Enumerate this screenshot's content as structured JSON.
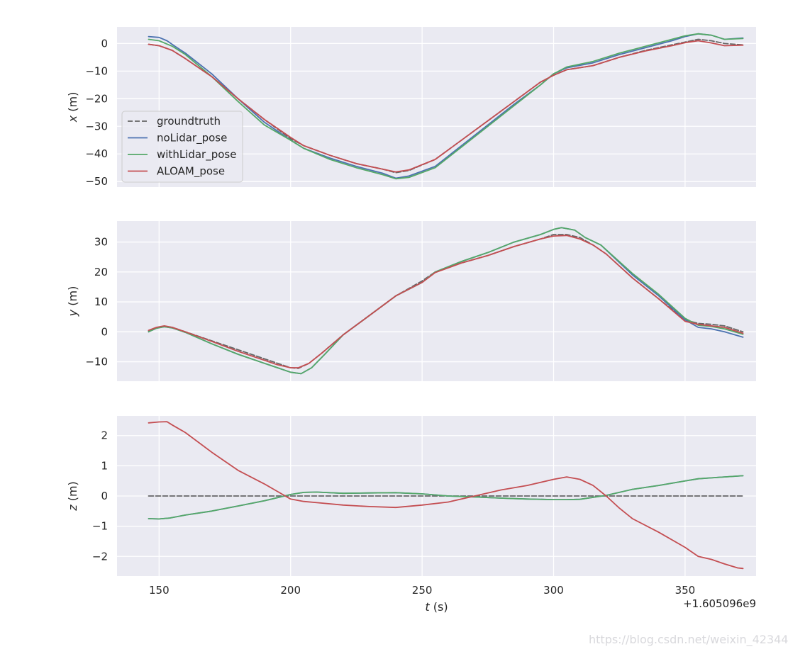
{
  "chart_data": [
    {
      "type": "line",
      "ylabel_var": "x",
      "ylabel_unit": " (m)",
      "xlim": [
        134,
        377
      ],
      "ylim": [
        -52,
        6
      ],
      "yticks": [
        0,
        -10,
        -20,
        -30,
        -40,
        -50
      ],
      "xticks": [
        150,
        200,
        250,
        300,
        350
      ],
      "show_xticklabels": false,
      "grid": true,
      "legend": {
        "placement": "center-left",
        "entries": [
          "groundtruth",
          "noLidar_pose",
          "withLidar_pose",
          "ALOAM_pose"
        ]
      },
      "series": [
        {
          "name": "groundtruth",
          "color": "#666666",
          "style": "dashed",
          "x": [
            146,
            150,
            155,
            160,
            170,
            180,
            190,
            200,
            205,
            215,
            225,
            235,
            240,
            245,
            255,
            265,
            275,
            285,
            295,
            300,
            305,
            315,
            325,
            335,
            345,
            350,
            355,
            360,
            365,
            372
          ],
          "y": [
            -0.3,
            -0.8,
            -2.5,
            -5.5,
            -12,
            -20,
            -27.5,
            -34.5,
            -37,
            -40.5,
            -43.5,
            -45.5,
            -46.8,
            -46,
            -42,
            -35,
            -28,
            -21,
            -14,
            -11.5,
            -9.5,
            -8,
            -5,
            -2.5,
            -0.5,
            0.5,
            1.5,
            1,
            0,
            -0.5
          ]
        },
        {
          "name": "noLidar_pose",
          "color": "#4c72b0",
          "style": "solid",
          "x": [
            146,
            150,
            153,
            156,
            160,
            170,
            180,
            190,
            200,
            205,
            215,
            225,
            235,
            240,
            245,
            255,
            265,
            275,
            285,
            295,
            300,
            305,
            315,
            325,
            335,
            345,
            350,
            355,
            360,
            365,
            372
          ],
          "y": [
            2.5,
            2.2,
            1,
            -1,
            -3.5,
            -11,
            -20,
            -28.5,
            -35,
            -38,
            -41.5,
            -44.5,
            -47,
            -48.8,
            -48,
            -44.5,
            -37,
            -29.5,
            -22,
            -15,
            -11,
            -8.8,
            -7,
            -4,
            -1.5,
            1,
            2.5,
            3.5,
            3,
            1.5,
            2
          ]
        },
        {
          "name": "withLidar_pose",
          "color": "#55a868",
          "style": "solid",
          "x": [
            146,
            150,
            155,
            160,
            170,
            180,
            190,
            200,
            205,
            215,
            225,
            235,
            240,
            245,
            255,
            265,
            275,
            285,
            295,
            300,
            305,
            315,
            325,
            335,
            345,
            350,
            355,
            360,
            365,
            372
          ],
          "y": [
            1.5,
            1,
            -1,
            -4,
            -12,
            -21,
            -29.5,
            -35,
            -38,
            -42,
            -45,
            -47.5,
            -49,
            -48.5,
            -45,
            -37.5,
            -30,
            -22.5,
            -15,
            -11,
            -8.5,
            -6.5,
            -3.5,
            -1,
            1.5,
            2.8,
            3.5,
            3,
            1.5,
            1.8
          ]
        },
        {
          "name": "ALOAM_pose",
          "color": "#c44e52",
          "style": "solid",
          "x": [
            146,
            150,
            155,
            160,
            170,
            180,
            190,
            200,
            205,
            215,
            225,
            235,
            240,
            245,
            255,
            265,
            275,
            285,
            295,
            300,
            305,
            315,
            325,
            335,
            345,
            350,
            355,
            360,
            365,
            372
          ],
          "y": [
            -0.3,
            -0.8,
            -2.5,
            -5.5,
            -12,
            -20,
            -27.5,
            -34,
            -37,
            -40.5,
            -43.5,
            -45.5,
            -46.5,
            -45.8,
            -42,
            -35,
            -28,
            -21,
            -14,
            -11.5,
            -9.5,
            -8,
            -5,
            -2.7,
            -0.8,
            0.3,
            1,
            0.2,
            -0.8,
            -0.6
          ]
        }
      ]
    },
    {
      "type": "line",
      "ylabel_var": "y",
      "ylabel_unit": " (m)",
      "xlim": [
        134,
        377
      ],
      "ylim": [
        -16.5,
        37
      ],
      "yticks": [
        30,
        20,
        10,
        0,
        -10
      ],
      "xticks": [
        150,
        200,
        250,
        300,
        350
      ],
      "show_xticklabels": false,
      "grid": true,
      "series": [
        {
          "name": "groundtruth",
          "color": "#666666",
          "style": "dashed",
          "x": [
            146,
            149,
            152,
            155,
            160,
            170,
            180,
            190,
            195,
            200,
            203,
            207,
            212,
            220,
            230,
            240,
            250,
            255,
            265,
            275,
            285,
            295,
            300,
            305,
            310,
            315,
            320,
            330,
            340,
            350,
            355,
            360,
            365,
            372
          ],
          "y": [
            0.3,
            1.3,
            1.8,
            1.5,
            0,
            -3,
            -6,
            -9,
            -10.5,
            -12,
            -12.2,
            -10.5,
            -7,
            -1,
            5.5,
            12,
            17,
            20,
            23,
            25.5,
            28.5,
            31,
            32.5,
            32.5,
            31.5,
            29,
            26,
            18,
            11,
            4,
            2.8,
            2.5,
            2,
            0
          ]
        },
        {
          "name": "noLidar_pose",
          "color": "#4c72b0",
          "style": "solid",
          "x": [
            146,
            149,
            152,
            155,
            160,
            170,
            180,
            190,
            195,
            200,
            204,
            208,
            213,
            220,
            230,
            240,
            250,
            255,
            265,
            275,
            285,
            295,
            300,
            303,
            308,
            312,
            318,
            330,
            340,
            350,
            355,
            360,
            365,
            372
          ],
          "y": [
            0,
            1.2,
            1.7,
            1.3,
            -0.2,
            -4,
            -7.5,
            -10.5,
            -12,
            -13.5,
            -14,
            -12,
            -7.5,
            -1,
            5.5,
            12,
            16.5,
            20,
            23.5,
            26.5,
            30,
            32.5,
            34.2,
            34.8,
            34,
            31.5,
            29,
            19,
            12,
            4,
            1.5,
            1,
            0,
            -1.8
          ]
        },
        {
          "name": "withLidar_pose",
          "color": "#55a868",
          "style": "solid",
          "x": [
            146,
            149,
            152,
            155,
            160,
            170,
            180,
            190,
            195,
            200,
            204,
            208,
            213,
            220,
            230,
            240,
            250,
            255,
            265,
            275,
            285,
            295,
            300,
            303,
            308,
            312,
            318,
            330,
            340,
            350,
            355,
            360,
            365,
            372
          ],
          "y": [
            0,
            1.2,
            1.7,
            1.3,
            -0.2,
            -4,
            -7.5,
            -10.5,
            -12,
            -13.5,
            -14,
            -12,
            -7.5,
            -1,
            5.5,
            12,
            16.5,
            20,
            23.5,
            26.5,
            30,
            32.5,
            34.2,
            34.8,
            34,
            31.5,
            29,
            19.5,
            12.5,
            4.5,
            2.2,
            1.8,
            1,
            -0.8
          ]
        },
        {
          "name": "ALOAM_pose",
          "color": "#c44e52",
          "style": "solid",
          "x": [
            146,
            149,
            152,
            155,
            160,
            170,
            180,
            190,
            195,
            200,
            203,
            207,
            212,
            220,
            230,
            240,
            250,
            255,
            265,
            275,
            285,
            295,
            300,
            305,
            310,
            315,
            320,
            330,
            340,
            350,
            355,
            360,
            365,
            372
          ],
          "y": [
            0.5,
            1.5,
            2,
            1.5,
            0,
            -3.2,
            -6.5,
            -9.5,
            -11,
            -12,
            -12,
            -10.5,
            -7,
            -1,
            5.5,
            12,
            16.5,
            19.8,
            23,
            25.5,
            28.5,
            31,
            32,
            32.2,
            31,
            29,
            26,
            18,
            11,
            3.5,
            2.5,
            2,
            1.5,
            -0.5
          ]
        }
      ]
    },
    {
      "type": "line",
      "ylabel_var": "z",
      "ylabel_unit": " (m)",
      "xlabel_var": "t",
      "xlabel_unit": " (s)",
      "offset_label": "+1.605096e9",
      "xlim": [
        134,
        377
      ],
      "ylim": [
        -2.65,
        2.65
      ],
      "yticks": [
        2,
        1,
        0,
        -1,
        -2
      ],
      "xticks": [
        150,
        200,
        250,
        300,
        350
      ],
      "show_xticklabels": true,
      "grid": true,
      "series": [
        {
          "name": "groundtruth",
          "color": "#666666",
          "style": "dashed",
          "x": [
            146,
            372
          ],
          "y": [
            0,
            0
          ]
        },
        {
          "name": "noLidar_pose",
          "color": "#4c72b0",
          "style": "solid",
          "x": [
            146,
            150,
            154,
            160,
            170,
            180,
            190,
            200,
            205,
            210,
            220,
            230,
            240,
            250,
            260,
            270,
            280,
            290,
            300,
            305,
            310,
            320,
            330,
            340,
            350,
            355,
            360,
            372
          ],
          "y": [
            -0.75,
            -0.76,
            -0.73,
            -0.63,
            -0.5,
            -0.33,
            -0.16,
            0.05,
            0.12,
            0.13,
            0.09,
            0.1,
            0.11,
            0.07,
            0,
            -0.03,
            -0.07,
            -0.1,
            -0.12,
            -0.12,
            -0.11,
            0.02,
            0.22,
            0.35,
            0.5,
            0.57,
            0.6,
            0.67
          ]
        },
        {
          "name": "withLidar_pose",
          "color": "#55a868",
          "style": "solid",
          "x": [
            146,
            150,
            154,
            160,
            170,
            180,
            190,
            200,
            205,
            210,
            220,
            230,
            240,
            250,
            260,
            270,
            280,
            290,
            300,
            305,
            310,
            320,
            330,
            340,
            350,
            355,
            360,
            372
          ],
          "y": [
            -0.75,
            -0.76,
            -0.73,
            -0.63,
            -0.5,
            -0.33,
            -0.16,
            0.05,
            0.12,
            0.13,
            0.09,
            0.1,
            0.11,
            0.07,
            0,
            -0.03,
            -0.07,
            -0.1,
            -0.12,
            -0.12,
            -0.11,
            0.02,
            0.22,
            0.35,
            0.5,
            0.57,
            0.6,
            0.67
          ]
        },
        {
          "name": "ALOAM_pose",
          "color": "#c44e52",
          "style": "solid",
          "x": [
            146,
            150,
            153,
            155,
            160,
            170,
            180,
            190,
            195,
            200,
            205,
            210,
            220,
            230,
            240,
            250,
            260,
            270,
            280,
            290,
            300,
            305,
            310,
            315,
            320,
            325,
            330,
            340,
            350,
            355,
            360,
            365,
            370,
            372
          ],
          "y": [
            2.42,
            2.45,
            2.46,
            2.35,
            2.1,
            1.45,
            0.85,
            0.4,
            0.15,
            -0.1,
            -0.18,
            -0.22,
            -0.3,
            -0.35,
            -0.38,
            -0.3,
            -0.2,
            0,
            0.2,
            0.35,
            0.55,
            0.63,
            0.55,
            0.35,
            0,
            -0.4,
            -0.75,
            -1.2,
            -1.7,
            -2,
            -2.1,
            -2.25,
            -2.38,
            -2.4
          ]
        }
      ]
    }
  ],
  "watermark": "https://blog.csdn.net/weixin_42344264"
}
